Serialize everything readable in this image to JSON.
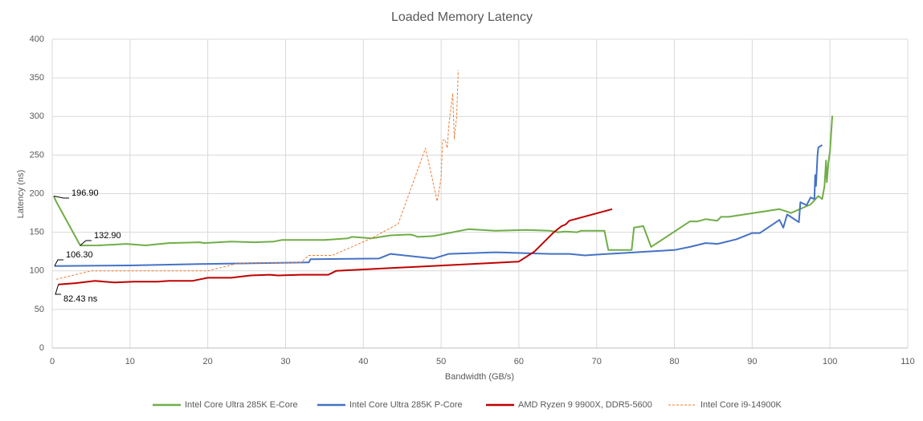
{
  "chart_data": {
    "type": "line",
    "title": "Loaded Memory Latency",
    "x_label": "Bandwidth (GB/s)",
    "y_label": "Latency (ns)",
    "xlim": [
      0,
      110
    ],
    "xticks": [
      0,
      10,
      20,
      30,
      40,
      50,
      60,
      70,
      80,
      90,
      100,
      110
    ],
    "ylim": [
      0,
      400
    ],
    "yticks": [
      0,
      50,
      100,
      150,
      200,
      250,
      300,
      350,
      400
    ],
    "grid": true,
    "legend": "bottom",
    "annotations": [
      "196.90",
      "132.90",
      "106.30",
      "82.43 ns"
    ],
    "series": [
      {
        "name": "Intel Core Ultra 285K E-Core",
        "color": "#70ad47",
        "dashed": false,
        "x": [
          0.2,
          0.5,
          3.6,
          6,
          8,
          9.5,
          12,
          15,
          19,
          19.5,
          23,
          26,
          28.5,
          29.5,
          35,
          38,
          38.5,
          40,
          41,
          43.5,
          46,
          46.5,
          47,
          49,
          53.5,
          57,
          61,
          64,
          65,
          66,
          67.5,
          68,
          71,
          71.5,
          74.5,
          74.8,
          76,
          77,
          82,
          83,
          84,
          85.5,
          86,
          87,
          93.5,
          95,
          97.5,
          98.5,
          99,
          99.3,
          99.5,
          99.6,
          99.8,
          100,
          100.3
        ],
        "values": [
          196.9,
          190,
          132.9,
          133,
          134,
          135,
          133,
          136,
          137,
          136,
          138,
          137,
          138,
          140,
          140,
          142,
          144,
          143,
          142,
          146,
          147,
          146,
          144,
          145,
          154,
          152,
          153,
          152,
          150,
          151,
          150,
          152,
          152,
          127,
          127,
          156,
          158,
          131,
          164,
          164,
          167,
          165,
          170,
          170,
          180,
          175,
          186,
          197,
          193,
          210,
          243,
          215,
          240,
          255,
          301
        ]
      },
      {
        "name": "Intel Core Ultra 285K P-Core",
        "color": "#4472c4",
        "dashed": false,
        "x": [
          0.3,
          10,
          20,
          30,
          33,
          33.2,
          42,
          43.5,
          49,
          51,
          57,
          64,
          66.5,
          68.5,
          70,
          75,
          80,
          82,
          84,
          85.5,
          86,
          88,
          90,
          91,
          93.5,
          94,
          94.5,
          96,
          96.2,
          97,
          97.5,
          98,
          98.1,
          98.2,
          98.4,
          98.5,
          99
        ],
        "values": [
          106.3,
          107,
          109,
          110.5,
          111,
          115,
          116,
          122,
          116,
          122,
          124,
          122,
          122,
          120,
          121,
          124,
          127,
          131,
          136,
          135,
          136,
          141,
          149,
          149,
          166,
          156,
          173,
          163,
          189,
          185,
          195,
          193,
          224,
          210,
          250,
          260,
          263
        ]
      },
      {
        "name": "AMD Ryzen 9 9900X, DDR5-5600",
        "color": "#c00000",
        "dashed": false,
        "x": [
          0.8,
          3,
          5.5,
          8,
          10.5,
          13.5,
          15,
          18,
          20,
          23,
          25.5,
          28,
          29,
          32,
          35.5,
          36.5,
          60,
          62,
          64.5,
          65.5,
          66,
          66.5,
          72
        ],
        "values": [
          82.43,
          84,
          87,
          85,
          86,
          86,
          87,
          87,
          91,
          91,
          94,
          95,
          94,
          95,
          95,
          100,
          112,
          125,
          150,
          158,
          160,
          165,
          180
        ]
      },
      {
        "name": "Intel Core i9-14900K",
        "color": "#ed7d31",
        "dashed": true,
        "x": [
          0.5,
          5,
          20,
          24,
          32,
          33,
          36,
          41,
          44.5,
          48,
          49.5,
          50,
          50.2,
          50.5,
          50.8,
          51,
          51.5,
          51.7,
          52,
          52.2
        ],
        "values": [
          89,
          100,
          100,
          110,
          111,
          120,
          120,
          142,
          161,
          259,
          190,
          220,
          269,
          270,
          259,
          290,
          330,
          271,
          300,
          360
        ]
      }
    ]
  }
}
